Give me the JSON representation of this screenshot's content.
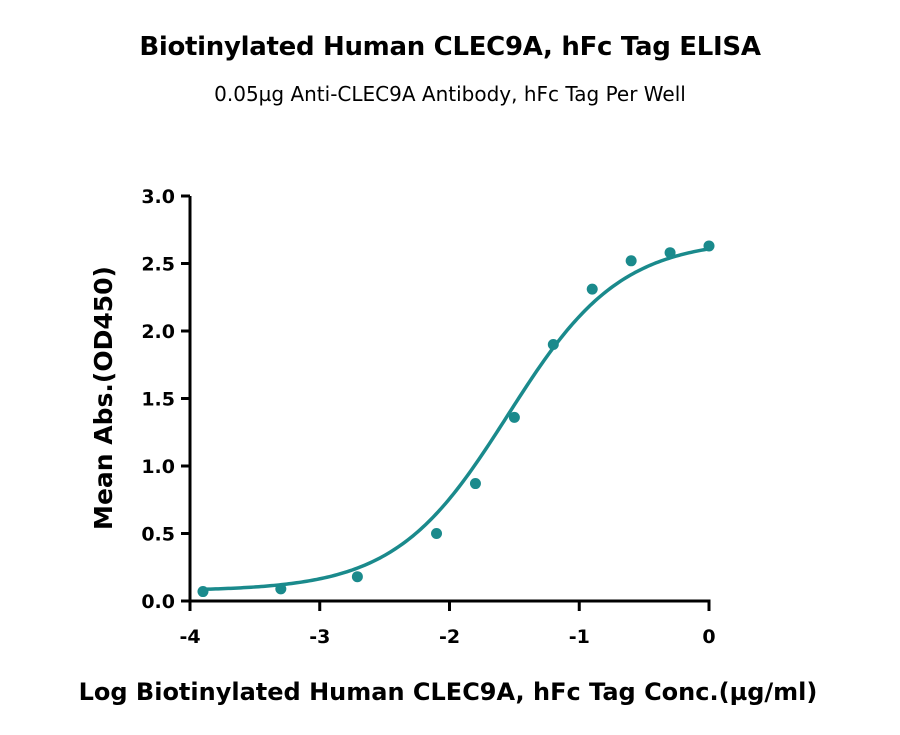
{
  "chart_data": {
    "type": "scatter",
    "title": "Biotinylated Human CLEC9A, hFc Tag ELISA",
    "subtitle": "0.05µg Anti-CLEC9A Antibody, hFc Tag Per Well",
    "xlabel": "Log Biotinylated Human CLEC9A, hFc Tag Conc.(µg/ml)",
    "ylabel": "Mean Abs.(OD450)",
    "xlim": [
      -4,
      0
    ],
    "ylim": [
      0,
      3.0
    ],
    "x_ticks": [
      -4,
      -3,
      -2,
      -1,
      0
    ],
    "x_tick_labels": [
      "-4",
      "-3",
      "-2",
      "-1",
      "0"
    ],
    "y_ticks": [
      0,
      0.5,
      1.0,
      1.5,
      2.0,
      2.5,
      3.0
    ],
    "y_tick_labels": [
      "0.0",
      "0.5",
      "1.0",
      "1.5",
      "2.0",
      "2.5",
      "3.0"
    ],
    "grid": false,
    "color": "#1a8a8c",
    "series": [
      {
        "x": [
          -3.9,
          -3.3,
          -2.71,
          -2.1,
          -1.8,
          -1.5,
          -1.2,
          -0.9,
          -0.6,
          -0.3,
          0.0
        ],
        "y": [
          0.07,
          0.09,
          0.18,
          0.5,
          0.87,
          1.36,
          1.9,
          2.31,
          2.52,
          2.58,
          2.63
        ],
        "fit": "four-parameter logistic"
      }
    ]
  }
}
